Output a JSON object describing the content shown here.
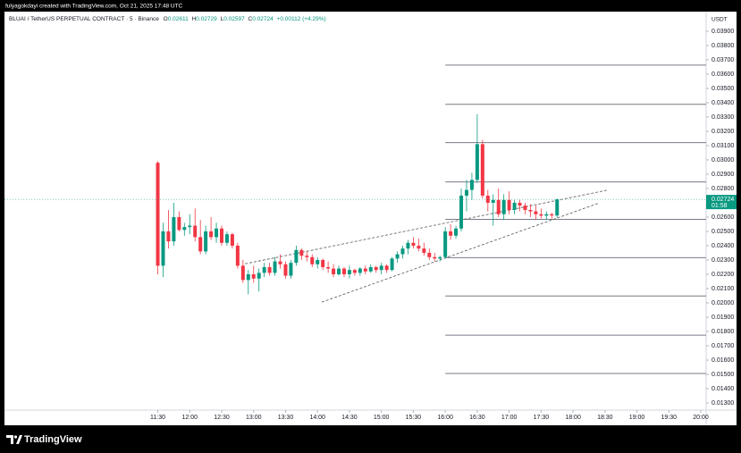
{
  "credit": "fulyagokdayi created with TradingView.com, Oct 21, 2025 17:48 UTC",
  "brand": "TradingView",
  "chart_data": {
    "type": "candlestick",
    "symbol": "BLUAI / TetherUS PERPETUAL CONTRACT · 5 · Binance",
    "ohlc_prefixes": [
      "O",
      "H",
      "L",
      "C"
    ],
    "change_label": "+0.00112 (+4.29%)",
    "axis_unit": "USDT",
    "countdown": "01:58",
    "up_color": "#089981",
    "down_color": "#f23645",
    "x": [
      "11:30",
      "11:35",
      "11:40",
      "11:45",
      "11:50",
      "11:55",
      "12:00",
      "12:05",
      "12:10",
      "12:15",
      "12:20",
      "12:25",
      "12:30",
      "12:35",
      "12:40",
      "12:45",
      "12:50",
      "12:55",
      "13:00",
      "13:05",
      "13:10",
      "13:15",
      "13:20",
      "13:25",
      "13:30",
      "13:35",
      "13:40",
      "13:45",
      "13:50",
      "13:55",
      "14:00",
      "14:05",
      "14:10",
      "14:15",
      "14:20",
      "14:25",
      "14:30",
      "14:35",
      "14:40",
      "14:45",
      "14:50",
      "14:55",
      "15:00",
      "15:05",
      "15:10",
      "15:15",
      "15:20",
      "15:25",
      "15:30",
      "15:35",
      "15:40",
      "15:45",
      "15:50",
      "15:55",
      "16:00",
      "16:05",
      "16:10",
      "16:15",
      "16:20",
      "16:25",
      "16:30",
      "16:35",
      "16:40",
      "16:45",
      "16:50",
      "16:55",
      "17:00",
      "17:05",
      "17:10",
      "17:15",
      "17:20",
      "17:25",
      "17:30",
      "17:35",
      "17:40",
      "17:45"
    ],
    "open": [
      0.0298,
      0.0226,
      0.025,
      0.0243,
      0.026,
      0.0251,
      0.0253,
      0.0254,
      0.0246,
      0.0236,
      0.025,
      0.0246,
      0.0252,
      0.0242,
      0.0248,
      0.024,
      0.0226,
      0.0216,
      0.022,
      0.0217,
      0.0221,
      0.0225,
      0.0221,
      0.0229,
      0.0227,
      0.0219,
      0.0228,
      0.0237,
      0.0233,
      0.0232,
      0.0227,
      0.023,
      0.0225,
      0.0224,
      0.022,
      0.0224,
      0.022,
      0.0223,
      0.0221,
      0.0224,
      0.0222,
      0.0225,
      0.0223,
      0.0226,
      0.0223,
      0.0231,
      0.0234,
      0.0238,
      0.0242,
      0.024,
      0.0238,
      0.0235,
      0.0232,
      0.0231,
      0.0232,
      0.025,
      0.0247,
      0.0252,
      0.0275,
      0.0279,
      0.0286,
      0.0311,
      0.0275,
      0.027,
      0.0272,
      0.0262,
      0.0272,
      0.0265,
      0.027,
      0.0268,
      0.0265,
      0.0264,
      0.0262,
      0.0261,
      0.0262,
      0.02611
    ],
    "high": [
      0.0299,
      0.0256,
      0.0265,
      0.027,
      0.0264,
      0.0256,
      0.0262,
      0.0266,
      0.0258,
      0.0254,
      0.026,
      0.0256,
      0.0254,
      0.025,
      0.0249,
      0.0242,
      0.023,
      0.0223,
      0.0226,
      0.0224,
      0.0228,
      0.0228,
      0.0232,
      0.0234,
      0.0229,
      0.023,
      0.024,
      0.0238,
      0.0236,
      0.0234,
      0.0232,
      0.0231,
      0.0229,
      0.0227,
      0.0226,
      0.0225,
      0.0226,
      0.0224,
      0.0225,
      0.0226,
      0.0227,
      0.0226,
      0.0228,
      0.0227,
      0.0232,
      0.0236,
      0.024,
      0.0244,
      0.0246,
      0.0245,
      0.0242,
      0.0238,
      0.0235,
      0.0233,
      0.0253,
      0.0255,
      0.0254,
      0.028,
      0.0286,
      0.0291,
      0.0332,
      0.0314,
      0.0279,
      0.0276,
      0.028,
      0.0276,
      0.0278,
      0.0272,
      0.0272,
      0.027,
      0.0269,
      0.0268,
      0.0266,
      0.0264,
      0.0263,
      0.02729
    ],
    "low": [
      0.022,
      0.0218,
      0.0238,
      0.024,
      0.025,
      0.0247,
      0.0248,
      0.0243,
      0.0234,
      0.0234,
      0.0244,
      0.0242,
      0.024,
      0.024,
      0.0238,
      0.0224,
      0.0214,
      0.0206,
      0.0214,
      0.0208,
      0.0218,
      0.0219,
      0.0219,
      0.0224,
      0.0217,
      0.0217,
      0.0226,
      0.023,
      0.0229,
      0.0225,
      0.0224,
      0.0223,
      0.0221,
      0.0218,
      0.0219,
      0.0218,
      0.0217,
      0.0219,
      0.0219,
      0.022,
      0.0221,
      0.0221,
      0.022,
      0.0221,
      0.0222,
      0.0228,
      0.0231,
      0.0234,
      0.0238,
      0.0236,
      0.0233,
      0.023,
      0.0229,
      0.0229,
      0.0231,
      0.0244,
      0.0245,
      0.025,
      0.0264,
      0.0272,
      0.0284,
      0.0273,
      0.0264,
      0.0254,
      0.026,
      0.0258,
      0.0262,
      0.0262,
      0.0264,
      0.0262,
      0.026,
      0.0258,
      0.0259,
      0.0258,
      0.0259,
      0.02597
    ],
    "close": [
      0.0226,
      0.025,
      0.0243,
      0.026,
      0.0251,
      0.0253,
      0.0254,
      0.0246,
      0.0236,
      0.025,
      0.0246,
      0.0252,
      0.0242,
      0.0248,
      0.024,
      0.0226,
      0.0216,
      0.022,
      0.0217,
      0.0221,
      0.0225,
      0.0221,
      0.0229,
      0.0227,
      0.0219,
      0.0228,
      0.0237,
      0.0233,
      0.0232,
      0.0227,
      0.023,
      0.0225,
      0.0224,
      0.022,
      0.0224,
      0.022,
      0.0223,
      0.0221,
      0.0224,
      0.0222,
      0.0225,
      0.0223,
      0.0226,
      0.0223,
      0.0231,
      0.0234,
      0.0238,
      0.0242,
      0.024,
      0.0238,
      0.0235,
      0.0232,
      0.0231,
      0.0232,
      0.025,
      0.0247,
      0.0252,
      0.0275,
      0.0279,
      0.0286,
      0.0311,
      0.0275,
      0.027,
      0.0272,
      0.0262,
      0.0272,
      0.0265,
      0.027,
      0.0268,
      0.0265,
      0.0264,
      0.0262,
      0.0261,
      0.0262,
      0.02611,
      0.02724
    ],
    "hlines": [
      0.03663,
      0.03389,
      0.03121,
      0.02846,
      0.02584,
      0.02316,
      0.02048,
      0.01774,
      0.01506
    ],
    "hline_start": "16:00",
    "trendlines": [
      {
        "x": [
          "12:52",
          "18:33"
        ],
        "y": [
          0.02273,
          0.0279
        ]
      },
      {
        "x": [
          "14:04",
          "18:24"
        ],
        "y": [
          0.02005,
          0.02697
        ]
      }
    ],
    "xlim": [
      "09:06",
      "20:05"
    ],
    "xticks": [
      "11:30",
      "12:00",
      "12:30",
      "13:00",
      "13:30",
      "14:00",
      "14:30",
      "15:00",
      "15:30",
      "16:00",
      "16:30",
      "17:00",
      "17:30",
      "18:00",
      "18:30",
      "19:00",
      "19:30",
      "20:00"
    ],
    "ylim": [
      0.0125,
      0.04037
    ],
    "yticks": [
      {
        "value": 0.013,
        "label": "0.01300"
      },
      {
        "value": 0.014,
        "label": "0.01400"
      },
      {
        "value": 0.015,
        "label": "0.01500"
      },
      {
        "value": 0.016,
        "label": "0.01600"
      },
      {
        "value": 0.017,
        "label": "0.01700"
      },
      {
        "value": 0.018,
        "label": "0.01800"
      },
      {
        "value": 0.019,
        "label": "0.01900"
      },
      {
        "value": 0.02,
        "label": "0.02000"
      },
      {
        "value": 0.021,
        "label": "0.02100"
      },
      {
        "value": 0.022,
        "label": "0.02200"
      },
      {
        "value": 0.023,
        "label": "0.02300"
      },
      {
        "value": 0.024,
        "label": "0.02400"
      },
      {
        "value": 0.025,
        "label": "0.02500"
      },
      {
        "value": 0.026,
        "label": "0.02600"
      },
      {
        "value": 0.027,
        "label": "0.02700"
      },
      {
        "value": 0.028,
        "label": "0.02800"
      },
      {
        "value": 0.029,
        "label": "0.02900"
      },
      {
        "value": 0.03,
        "label": "0.03000"
      },
      {
        "value": 0.031,
        "label": "0.03100"
      },
      {
        "value": 0.032,
        "label": "0.03200"
      },
      {
        "value": 0.033,
        "label": "0.03300"
      },
      {
        "value": 0.034,
        "label": "0.03400"
      },
      {
        "value": 0.035,
        "label": "0.03500"
      },
      {
        "value": 0.036,
        "label": "0.03600"
      },
      {
        "value": 0.037,
        "label": "0.03700"
      },
      {
        "value": 0.038,
        "label": "0.03800"
      },
      {
        "value": 0.039,
        "label": "0.03900"
      }
    ],
    "grid": false
  }
}
